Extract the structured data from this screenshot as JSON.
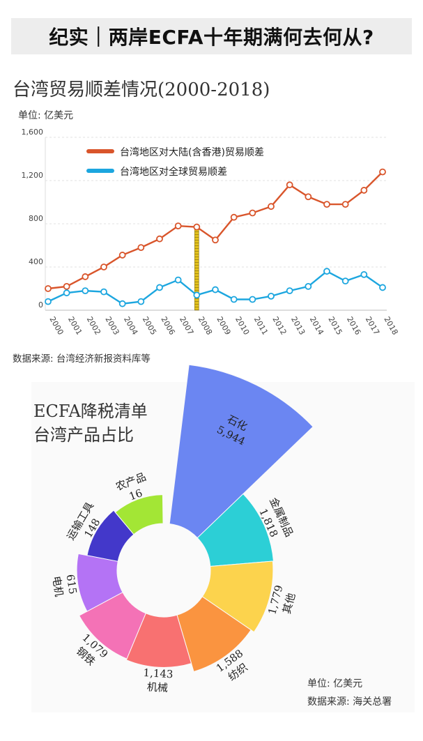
{
  "header": {
    "title": "纪实｜两岸ECFA十年期满何去何从?"
  },
  "chart_data": [
    {
      "type": "line",
      "title": "台湾贸易顺差情况(2000-2018)",
      "unit": "单位: 亿美元",
      "source": "数据来源: 台湾经济新报资料库等",
      "x": [
        "2000",
        "2001",
        "2002",
        "2003",
        "2004",
        "2005",
        "2006",
        "2007",
        "2008",
        "2009",
        "2010",
        "2011",
        "2012",
        "2013",
        "2014",
        "2015",
        "2016",
        "2017",
        "2018"
      ],
      "ylim": [
        0,
        1600
      ],
      "y_ticks": [
        "0",
        "400",
        "800",
        "1,200",
        "1,600"
      ],
      "grid": true,
      "legend_position": "top-left",
      "highlight_year": "2008",
      "series": [
        {
          "name": "台湾地区对大陆(含香港)贸易顺差",
          "color": "#d9552b",
          "values": [
            200,
            220,
            310,
            400,
            510,
            580,
            660,
            780,
            770,
            650,
            860,
            900,
            960,
            1160,
            1050,
            980,
            980,
            1110,
            1280
          ]
        },
        {
          "name": "台湾地区对全球贸易顺差",
          "color": "#1ca6df",
          "values": [
            80,
            160,
            180,
            170,
            60,
            80,
            210,
            280,
            140,
            190,
            100,
            100,
            130,
            180,
            220,
            360,
            270,
            330,
            210
          ]
        }
      ]
    },
    {
      "type": "pie",
      "title_line1": "ECFA降税清单",
      "title_line2": "台湾产品占比",
      "unit": "单位: 亿美元",
      "source": "数据来源: 海关总署",
      "slices": [
        {
          "name": "石化",
          "value": 5944,
          "label": "5,944",
          "color": "#6b86f2"
        },
        {
          "name": "金属制品",
          "value": 1818,
          "label": "1,818",
          "color": "#2ccfd6"
        },
        {
          "name": "其他",
          "value": 1779,
          "label": "1,779",
          "color": "#fcd34d"
        },
        {
          "name": "纺织",
          "value": 1588,
          "label": "1,588",
          "color": "#fa9440"
        },
        {
          "name": "机械",
          "value": 1143,
          "label": "1,143",
          "color": "#f87171"
        },
        {
          "name": "钢铁",
          "value": 1079,
          "label": "1,079",
          "color": "#f472b6"
        },
        {
          "name": "电机",
          "value": 615,
          "label": "615",
          "color": "#b473f5"
        },
        {
          "name": "运输工具",
          "value": 148,
          "label": "148",
          "color": "#4338ca"
        },
        {
          "name": "农产品",
          "value": 16,
          "label": "16",
          "color": "#a3e635"
        }
      ]
    }
  ]
}
